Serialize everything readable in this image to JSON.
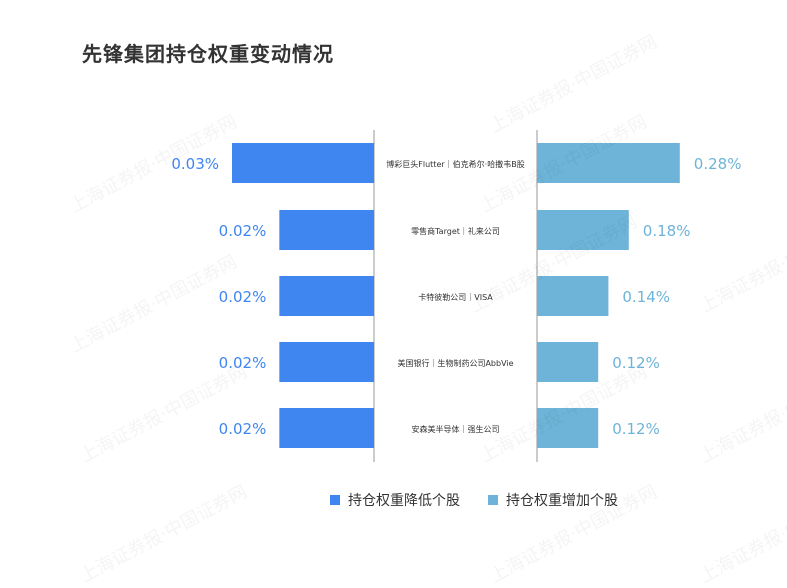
{
  "title": "先锋集团持仓权重变动情况",
  "watermark": "上海证券报·中国证券网",
  "colors": {
    "decrease": "#3f86f0",
    "increase": "#6db4d8",
    "decrease_label": "#3f86f0",
    "increase_label": "#6db4d8",
    "axis": "#999999"
  },
  "chart_data": {
    "type": "bar",
    "orientation": "horizontal-diverging",
    "categories": [
      "博彩巨头Flutter｜伯克希尔·哈撒韦B股",
      "零售商Target｜礼来公司",
      "卡特彼勒公司｜VISA",
      "美国银行｜生物制药公司AbbVie",
      "安森美半导体｜强生公司"
    ],
    "series": [
      {
        "name": "持仓权重降低个股",
        "values": [
          0.03,
          0.02,
          0.02,
          0.02,
          0.02
        ],
        "labels": [
          "0.03%",
          "0.02%",
          "0.02%",
          "0.02%",
          "0.02%"
        ]
      },
      {
        "name": "持仓权重增加个股",
        "values": [
          0.28,
          0.18,
          0.14,
          0.12,
          0.12
        ],
        "labels": [
          "0.28%",
          "0.18%",
          "0.14%",
          "0.12%",
          "0.12%"
        ]
      }
    ],
    "legend_position": "bottom-center"
  }
}
